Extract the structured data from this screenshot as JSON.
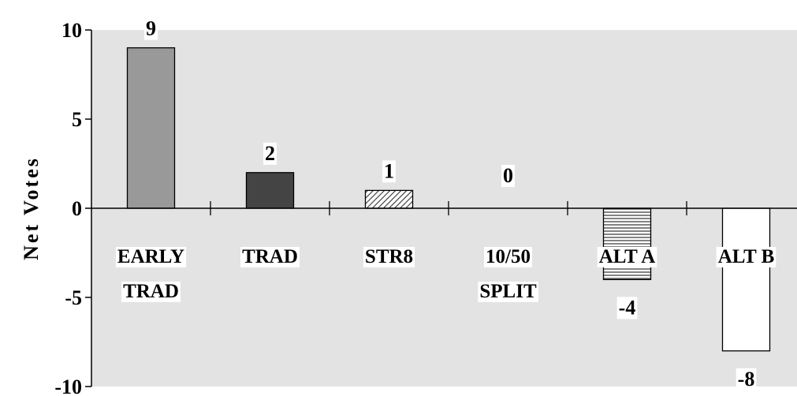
{
  "chart_data": {
    "type": "bar",
    "ylabel": "Net Votes",
    "ylim": [
      -10,
      10
    ],
    "yticks": [
      10,
      5,
      0,
      -5,
      -10
    ],
    "ytick_labels": [
      "10",
      "5",
      "0",
      "-5",
      "-10"
    ],
    "grid": false,
    "categories": [
      [
        "EARLY",
        "TRAD"
      ],
      [
        "TRAD"
      ],
      [
        "STR8"
      ],
      [
        "10/50",
        "SPLIT"
      ],
      [
        "ALT A"
      ],
      [
        "ALT B"
      ]
    ],
    "values": [
      9,
      2,
      1,
      0,
      -4,
      -8
    ],
    "value_labels": [
      "9",
      "2",
      "1",
      "0",
      "-4",
      "-8"
    ],
    "bar_styles": [
      "solid-gray",
      "solid-dark",
      "diagonal-hatch",
      "none",
      "horizontal-lines",
      "white"
    ],
    "colors": {
      "plot_bg": "#e3e3e3",
      "bar_gray": "#999999",
      "bar_dark": "#444444",
      "bar_white": "#ffffff",
      "outline": "#000000"
    }
  }
}
